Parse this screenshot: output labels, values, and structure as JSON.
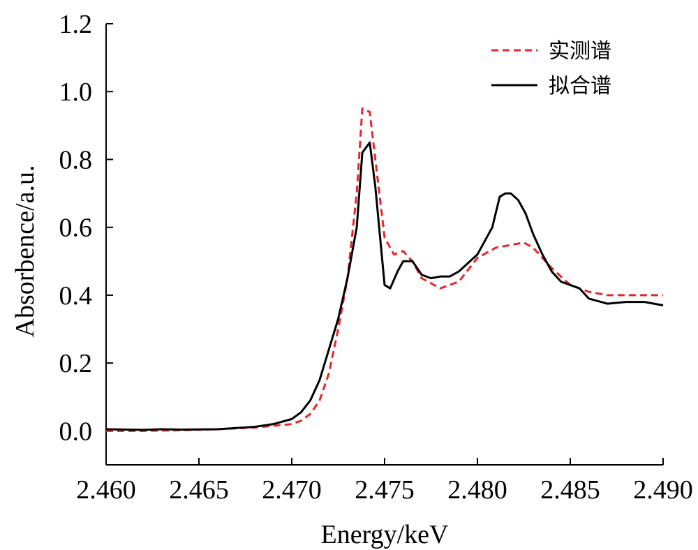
{
  "chart_data": {
    "type": "line",
    "xlabel": "Energy/keV",
    "ylabel": "Absorbence/a.u.",
    "xlim": [
      2.46,
      2.49
    ],
    "ylim": [
      -0.1,
      1.2
    ],
    "xticks": [
      2.46,
      2.465,
      2.47,
      2.475,
      2.48,
      2.485,
      2.49
    ],
    "xtick_labels": [
      "2.460",
      "2.465",
      "2.470",
      "2.475",
      "2.480",
      "2.485",
      "2.490"
    ],
    "yticks": [
      0.0,
      0.2,
      0.4,
      0.6,
      0.8,
      1.0,
      1.2
    ],
    "ytick_labels": [
      "0.0",
      "0.2",
      "0.4",
      "0.6",
      "0.8",
      "1.0",
      "1.2"
    ],
    "legend_position": "top-right",
    "series": [
      {
        "name": "实测谱",
        "color": "#e8262b",
        "style": "dashed",
        "x": [
          2.46,
          2.462,
          2.464,
          2.466,
          2.468,
          2.469,
          2.47,
          2.4705,
          2.471,
          2.4715,
          2.472,
          2.4725,
          2.473,
          2.4735,
          2.4738,
          2.4742,
          2.4745,
          2.475,
          2.4755,
          2.476,
          2.4765,
          2.477,
          2.478,
          2.479,
          2.48,
          2.481,
          2.482,
          2.4825,
          2.483,
          2.484,
          2.485,
          2.486,
          2.487,
          2.488,
          2.489,
          2.49
        ],
        "y": [
          0.0,
          0.0,
          0.002,
          0.005,
          0.01,
          0.015,
          0.02,
          0.03,
          0.05,
          0.09,
          0.17,
          0.3,
          0.45,
          0.7,
          0.95,
          0.94,
          0.8,
          0.57,
          0.52,
          0.53,
          0.5,
          0.45,
          0.42,
          0.44,
          0.51,
          0.54,
          0.55,
          0.555,
          0.54,
          0.48,
          0.43,
          0.41,
          0.4,
          0.4,
          0.4,
          0.4
        ]
      },
      {
        "name": "拟合谱",
        "color": "#000000",
        "style": "solid",
        "x": [
          2.46,
          2.462,
          2.463,
          2.464,
          2.466,
          2.468,
          2.469,
          2.47,
          2.4705,
          2.471,
          2.4715,
          2.472,
          2.4725,
          2.473,
          2.4735,
          2.4738,
          2.4742,
          2.4745,
          2.475,
          2.4753,
          2.4757,
          2.476,
          2.4765,
          2.477,
          2.4775,
          2.478,
          2.4785,
          2.479,
          2.48,
          2.4808,
          2.4812,
          2.4815,
          2.4818,
          2.4822,
          2.4826,
          2.483,
          2.4835,
          2.484,
          2.4845,
          2.4855,
          2.486,
          2.487,
          2.488,
          2.489,
          2.49
        ],
        "y": [
          0.005,
          0.003,
          0.005,
          0.004,
          0.005,
          0.012,
          0.02,
          0.035,
          0.055,
          0.09,
          0.15,
          0.24,
          0.33,
          0.45,
          0.6,
          0.82,
          0.85,
          0.72,
          0.43,
          0.42,
          0.47,
          0.5,
          0.5,
          0.46,
          0.45,
          0.455,
          0.455,
          0.47,
          0.52,
          0.6,
          0.69,
          0.7,
          0.7,
          0.68,
          0.64,
          0.58,
          0.52,
          0.47,
          0.44,
          0.42,
          0.39,
          0.375,
          0.38,
          0.38,
          0.37
        ]
      }
    ]
  }
}
